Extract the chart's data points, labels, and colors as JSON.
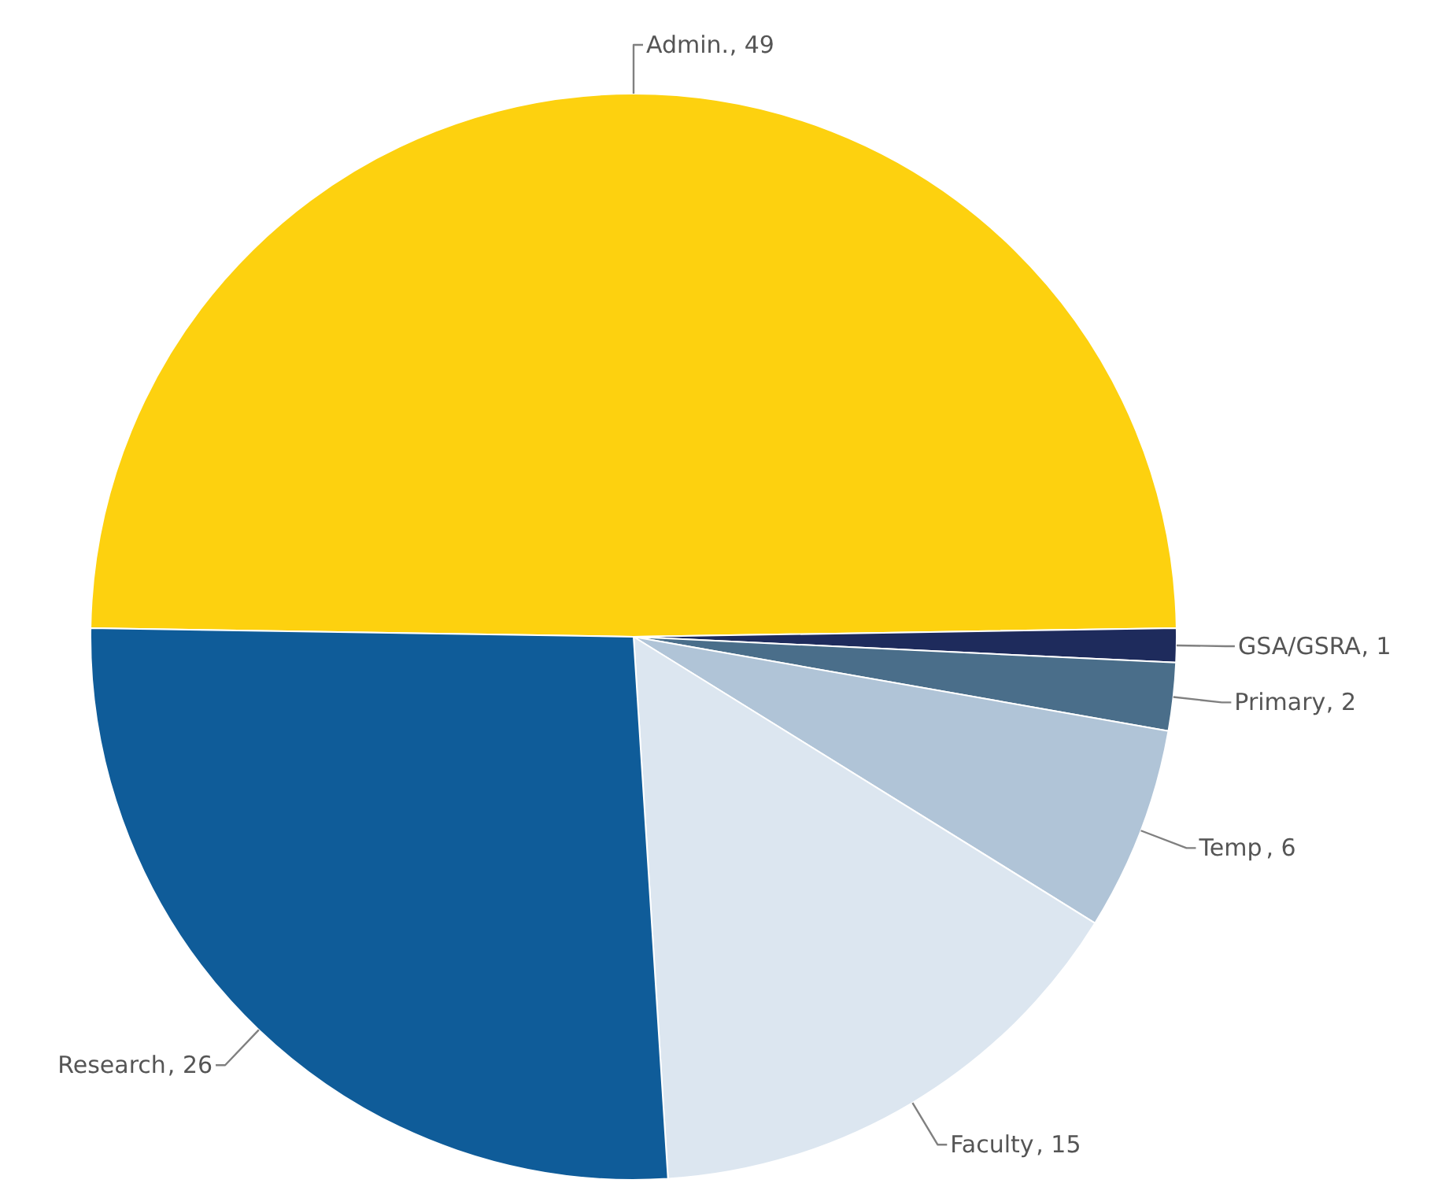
{
  "chart_data": {
    "type": "pie",
    "categories": [
      "Admin.",
      "GSA/GSRA",
      "Primary",
      "Temp",
      "Faculty",
      "Research"
    ],
    "values": [
      49,
      1,
      2,
      6,
      15,
      26
    ],
    "value_labels": [
      ", 49",
      ", 1",
      ", 2",
      ", 6",
      ", 15",
      ", 26"
    ],
    "colors": [
      "#fdd10f",
      "#1e2b5c",
      "#4a6e8a",
      "#b0c4d7",
      "#dce6f0",
      "#0f5c99"
    ]
  }
}
